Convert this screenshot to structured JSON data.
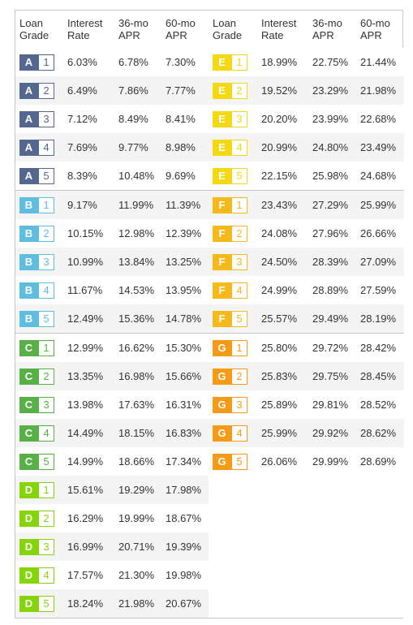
{
  "headers": {
    "left": [
      "Loan Grade",
      "Interest Rate",
      "36-mo APR",
      "60-mo APR"
    ],
    "right": [
      "Loan Grade",
      "Interest Rate",
      "36-mo APR",
      "60-mo APR"
    ]
  },
  "grade_colors": {
    "A": "#53678f",
    "B": "#5fbde0",
    "C": "#58b146",
    "D": "#86d50b",
    "E": "#f4d812",
    "F": "#f6b91c",
    "G": "#f59b17"
  },
  "rows": [
    {
      "left": {
        "grade": "A",
        "sub": "1",
        "rate": "6.03%",
        "apr36": "6.78%",
        "apr60": "7.30%"
      },
      "right": {
        "grade": "E",
        "sub": "1",
        "rate": "18.99%",
        "apr36": "22.75%",
        "apr60": "21.44%"
      }
    },
    {
      "left": {
        "grade": "A",
        "sub": "2",
        "rate": "6.49%",
        "apr36": "7.86%",
        "apr60": "7.77%"
      },
      "right": {
        "grade": "E",
        "sub": "2",
        "rate": "19.52%",
        "apr36": "23.29%",
        "apr60": "21.98%"
      }
    },
    {
      "left": {
        "grade": "A",
        "sub": "3",
        "rate": "7.12%",
        "apr36": "8.49%",
        "apr60": "8.41%"
      },
      "right": {
        "grade": "E",
        "sub": "3",
        "rate": "20.20%",
        "apr36": "23.99%",
        "apr60": "22.68%"
      }
    },
    {
      "left": {
        "grade": "A",
        "sub": "4",
        "rate": "7.69%",
        "apr36": "9.77%",
        "apr60": "8.98%"
      },
      "right": {
        "grade": "E",
        "sub": "4",
        "rate": "20.99%",
        "apr36": "24.80%",
        "apr60": "23.49%"
      }
    },
    {
      "left": {
        "grade": "A",
        "sub": "5",
        "rate": "8.39%",
        "apr36": "10.48%",
        "apr60": "9.69%"
      },
      "right": {
        "grade": "E",
        "sub": "5",
        "rate": "22.15%",
        "apr36": "25.98%",
        "apr60": "24.68%"
      }
    },
    {
      "left": {
        "grade": "B",
        "sub": "1",
        "rate": "9.17%",
        "apr36": "11.99%",
        "apr60": "11.39%"
      },
      "right": {
        "grade": "F",
        "sub": "1",
        "rate": "23.43%",
        "apr36": "27.29%",
        "apr60": "25.99%"
      }
    },
    {
      "left": {
        "grade": "B",
        "sub": "2",
        "rate": "10.15%",
        "apr36": "12.98%",
        "apr60": "12.39%"
      },
      "right": {
        "grade": "F",
        "sub": "2",
        "rate": "24.08%",
        "apr36": "27.96%",
        "apr60": "26.66%"
      }
    },
    {
      "left": {
        "grade": "B",
        "sub": "3",
        "rate": "10.99%",
        "apr36": "13.84%",
        "apr60": "13.25%"
      },
      "right": {
        "grade": "F",
        "sub": "3",
        "rate": "24.50%",
        "apr36": "28.39%",
        "apr60": "27.09%"
      }
    },
    {
      "left": {
        "grade": "B",
        "sub": "4",
        "rate": "11.67%",
        "apr36": "14.53%",
        "apr60": "13.95%"
      },
      "right": {
        "grade": "F",
        "sub": "4",
        "rate": "24.99%",
        "apr36": "28.89%",
        "apr60": "27.59%"
      }
    },
    {
      "left": {
        "grade": "B",
        "sub": "5",
        "rate": "12.49%",
        "apr36": "15.36%",
        "apr60": "14.78%"
      },
      "right": {
        "grade": "F",
        "sub": "5",
        "rate": "25.57%",
        "apr36": "29.49%",
        "apr60": "28.19%"
      }
    },
    {
      "left": {
        "grade": "C",
        "sub": "1",
        "rate": "12.99%",
        "apr36": "16.62%",
        "apr60": "15.30%"
      },
      "right": {
        "grade": "G",
        "sub": "1",
        "rate": "25.80%",
        "apr36": "29.72%",
        "apr60": "28.42%"
      }
    },
    {
      "left": {
        "grade": "C",
        "sub": "2",
        "rate": "13.35%",
        "apr36": "16.98%",
        "apr60": "15.66%"
      },
      "right": {
        "grade": "G",
        "sub": "2",
        "rate": "25.83%",
        "apr36": "29.75%",
        "apr60": "28.45%"
      }
    },
    {
      "left": {
        "grade": "C",
        "sub": "3",
        "rate": "13.98%",
        "apr36": "17.63%",
        "apr60": "16.31%"
      },
      "right": {
        "grade": "G",
        "sub": "3",
        "rate": "25.89%",
        "apr36": "29.81%",
        "apr60": "28.52%"
      }
    },
    {
      "left": {
        "grade": "C",
        "sub": "4",
        "rate": "14.49%",
        "apr36": "18.15%",
        "apr60": "16.83%"
      },
      "right": {
        "grade": "G",
        "sub": "4",
        "rate": "25.99%",
        "apr36": "29.92%",
        "apr60": "28.62%"
      }
    },
    {
      "left": {
        "grade": "C",
        "sub": "5",
        "rate": "14.99%",
        "apr36": "18.66%",
        "apr60": "17.34%"
      },
      "right": {
        "grade": "G",
        "sub": "5",
        "rate": "26.06%",
        "apr36": "29.99%",
        "apr60": "28.69%"
      }
    },
    {
      "left": {
        "grade": "D",
        "sub": "1",
        "rate": "15.61%",
        "apr36": "19.29%",
        "apr60": "17.98%"
      },
      "right": null
    },
    {
      "left": {
        "grade": "D",
        "sub": "2",
        "rate": "16.29%",
        "apr36": "19.99%",
        "apr60": "18.67%"
      },
      "right": null
    },
    {
      "left": {
        "grade": "D",
        "sub": "3",
        "rate": "16.99%",
        "apr36": "20.71%",
        "apr60": "19.39%"
      },
      "right": null
    },
    {
      "left": {
        "grade": "D",
        "sub": "4",
        "rate": "17.57%",
        "apr36": "21.30%",
        "apr60": "19.98%"
      },
      "right": null
    },
    {
      "left": {
        "grade": "D",
        "sub": "5",
        "rate": "18.24%",
        "apr36": "21.98%",
        "apr60": "20.67%"
      },
      "right": null
    }
  ]
}
